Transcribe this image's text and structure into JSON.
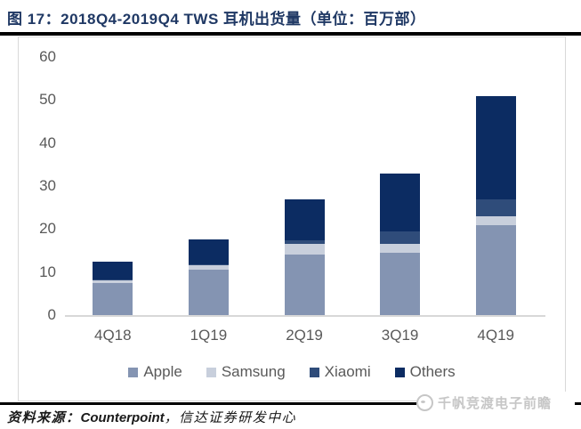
{
  "title": "图 17：2018Q4-2019Q4 TWS 耳机出货量（单位：百万部）",
  "colors": {
    "title_navy": "#1F3864",
    "axis_text": "#595959",
    "baseline": "#D8D8D8",
    "apple": "#8494B2",
    "samsung": "#C8CFDC",
    "xiaomi": "#2F4C7A",
    "others": "#0C2C62"
  },
  "chart_data": {
    "type": "bar",
    "stacked": true,
    "title": "2018Q4-2019Q4 TWS 耳机出货量",
    "unit": "百万部",
    "categories": [
      "4Q18",
      "1Q19",
      "2Q19",
      "3Q19",
      "4Q19"
    ],
    "series": [
      {
        "name": "Apple",
        "color_key": "apple",
        "values": [
          7.5,
          10.5,
          14.0,
          14.5,
          21.0
        ]
      },
      {
        "name": "Samsung",
        "color_key": "samsung",
        "values": [
          0.5,
          1.0,
          2.5,
          2.0,
          2.0
        ]
      },
      {
        "name": "Xiaomi",
        "color_key": "xiaomi",
        "values": [
          0.3,
          0.3,
          0.8,
          3.0,
          4.0
        ]
      },
      {
        "name": "Others",
        "color_key": "others",
        "values": [
          4.2,
          5.7,
          9.7,
          13.5,
          24.0
        ]
      }
    ],
    "totals": [
      12.5,
      17.5,
      27.0,
      33.0,
      51.0
    ],
    "ylim": [
      0,
      60
    ],
    "yticks": [
      0,
      10,
      20,
      30,
      40,
      50,
      60
    ],
    "grid": false,
    "legend_position": "bottom"
  },
  "footer": {
    "source_label": "资料来源：",
    "source_counterpoint": "Counterpoint",
    "source_rest": "，信达证券研发中心",
    "watermark_text": "千帆竞渡电子前瞻"
  }
}
